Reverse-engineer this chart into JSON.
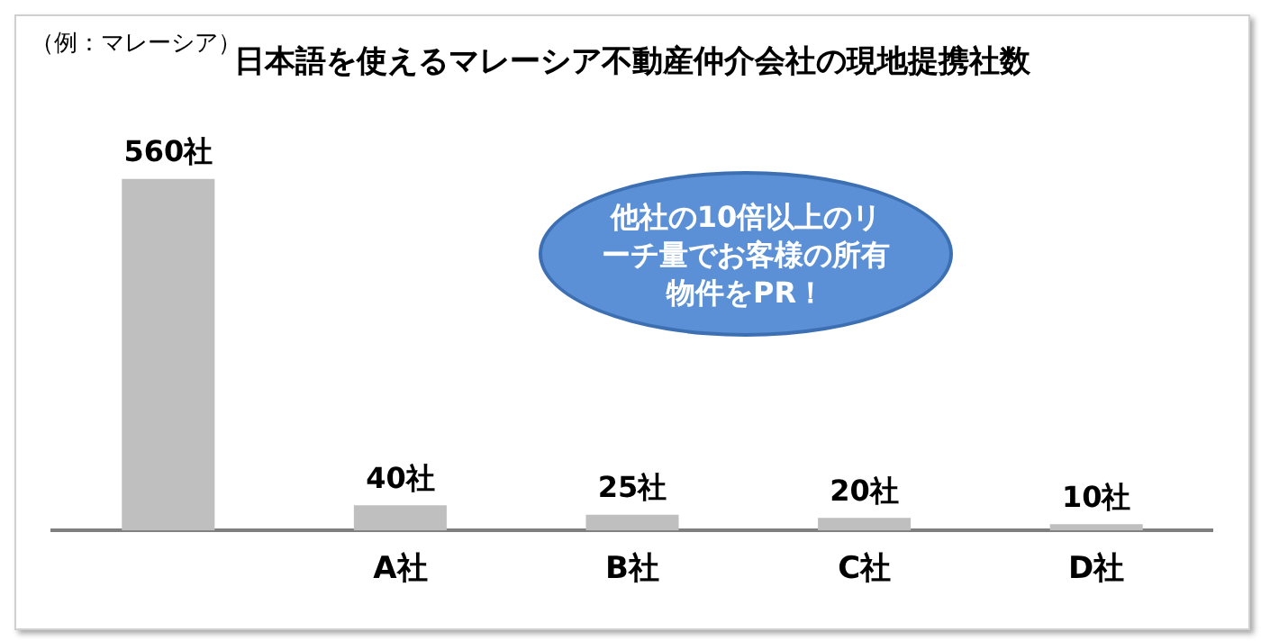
{
  "chart_data": {
    "type": "bar",
    "title": "日本語を使えるマレーシア不動産仲介会社の現地提携社数",
    "subtitle": "（例：マレーシア）",
    "categories": [
      null,
      "A社",
      "B社",
      "C社",
      "D社"
    ],
    "values": [
      560,
      40,
      25,
      20,
      10
    ],
    "value_labels": [
      "560社",
      "40社",
      "25社",
      "20社",
      "10社"
    ],
    "color": "#bfbfbf",
    "annotations": [
      "他社の10倍以上のリーチ量でお客様の所有物件をPR！"
    ],
    "legend": false,
    "grid": false
  }
}
